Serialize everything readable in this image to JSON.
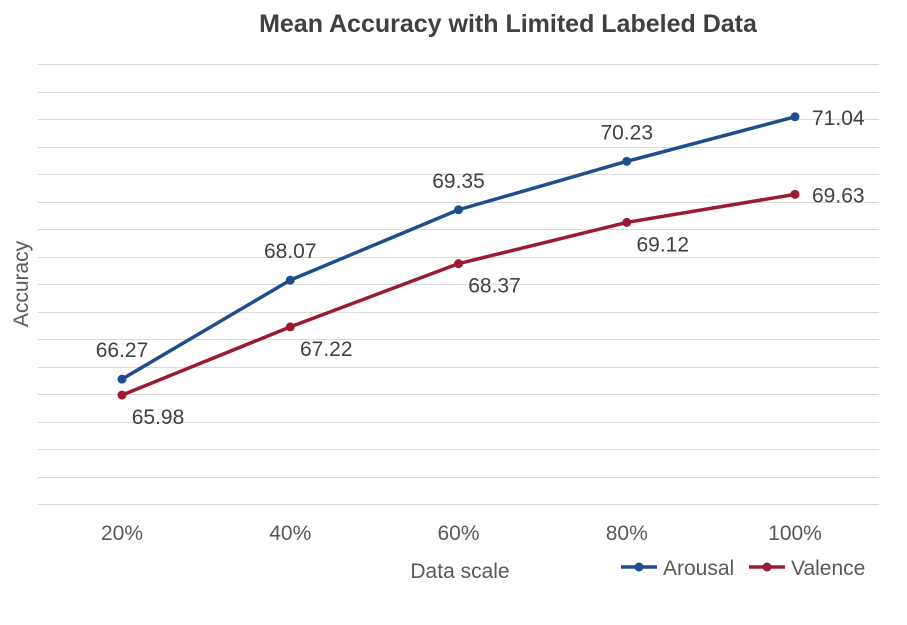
{
  "chart_data": {
    "type": "line",
    "title": "Mean Accuracy with Limited Labeled Data",
    "xlabel": "Data scale",
    "ylabel": "Accuracy",
    "categories": [
      "20%",
      "40%",
      "60%",
      "80%",
      "100%"
    ],
    "ylim": [
      64.0,
      72.0
    ],
    "grid_step": 0.5,
    "grid": true,
    "legend": "bottom-right",
    "series": [
      {
        "name": "Arousal",
        "color": "#1f4e8c",
        "values": [
          66.27,
          68.07,
          69.35,
          70.23,
          71.04
        ],
        "labels": [
          "66.27",
          "68.07",
          "69.35",
          "70.23",
          "71.04"
        ],
        "label_positions": [
          "above",
          "above",
          "above",
          "above",
          "right"
        ]
      },
      {
        "name": "Valence",
        "color": "#9b1b30",
        "values": [
          65.98,
          67.22,
          68.37,
          69.12,
          69.63
        ],
        "labels": [
          "65.98",
          "67.22",
          "68.37",
          "69.12",
          "69.63"
        ],
        "label_positions": [
          "below",
          "below",
          "below",
          "below",
          "right"
        ]
      }
    ]
  }
}
